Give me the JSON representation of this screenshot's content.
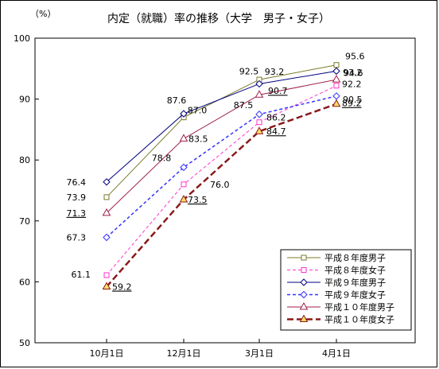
{
  "chart_data": {
    "type": "line",
    "title": "内定（就職）率の推移（大学　男子・女子）",
    "ylabel": "（%）",
    "xlabel": "",
    "categories": [
      "10月1日",
      "12月1日",
      "3月1日",
      "4月1日"
    ],
    "ylim": [
      50,
      100
    ],
    "yticks": [
      50,
      60,
      70,
      80,
      90,
      100
    ],
    "grid": false,
    "legend_position": "bottom-right",
    "series": [
      {
        "name": "平成８年度男子",
        "values": [
          73.9,
          87.0,
          93.2,
          95.6
        ],
        "labels": [
          "73.9",
          "87.0",
          "93.2",
          "95.6"
        ],
        "color": "#7a7a2a",
        "marker": "square",
        "dash": "solid",
        "width": 1
      },
      {
        "name": "平成８年度女子",
        "values": [
          61.1,
          76.0,
          86.2,
          92.2
        ],
        "labels": [
          "61.1",
          "76.0",
          "86.2",
          "92.2"
        ],
        "color": "#ff33cc",
        "marker": "square",
        "dash": "dashed",
        "width": 1
      },
      {
        "name": "平成９年度男子",
        "values": [
          76.4,
          87.6,
          92.5,
          94.6
        ],
        "labels": [
          "76.4",
          "87.6",
          "92.5",
          "94.6"
        ],
        "color": "#000080",
        "marker": "diamond",
        "dash": "solid",
        "width": 1
      },
      {
        "name": "平成９年度女子",
        "values": [
          67.3,
          78.8,
          87.5,
          90.5
        ],
        "labels": [
          "67.3",
          "78.8",
          "87.5",
          "90.5"
        ],
        "color": "#3333ff",
        "marker": "diamond",
        "dash": "dashed",
        "width": 1.5
      },
      {
        "name": "平成１０年度男子",
        "values": [
          71.3,
          83.5,
          90.7,
          93.2
        ],
        "labels": [
          "71.3",
          "83.5",
          "90.7",
          "93.2"
        ],
        "color": "#a0204a",
        "marker": "triangle",
        "dash": "solid",
        "width": 1
      },
      {
        "name": "平成１０年度女子",
        "values": [
          59.2,
          73.5,
          84.7,
          89.2
        ],
        "labels": [
          "59.2",
          "73.5",
          "84.7",
          "89.2"
        ],
        "color": "#8b1a1a",
        "marker": "triangle",
        "dash": "dashed",
        "width": 2.5
      }
    ]
  }
}
